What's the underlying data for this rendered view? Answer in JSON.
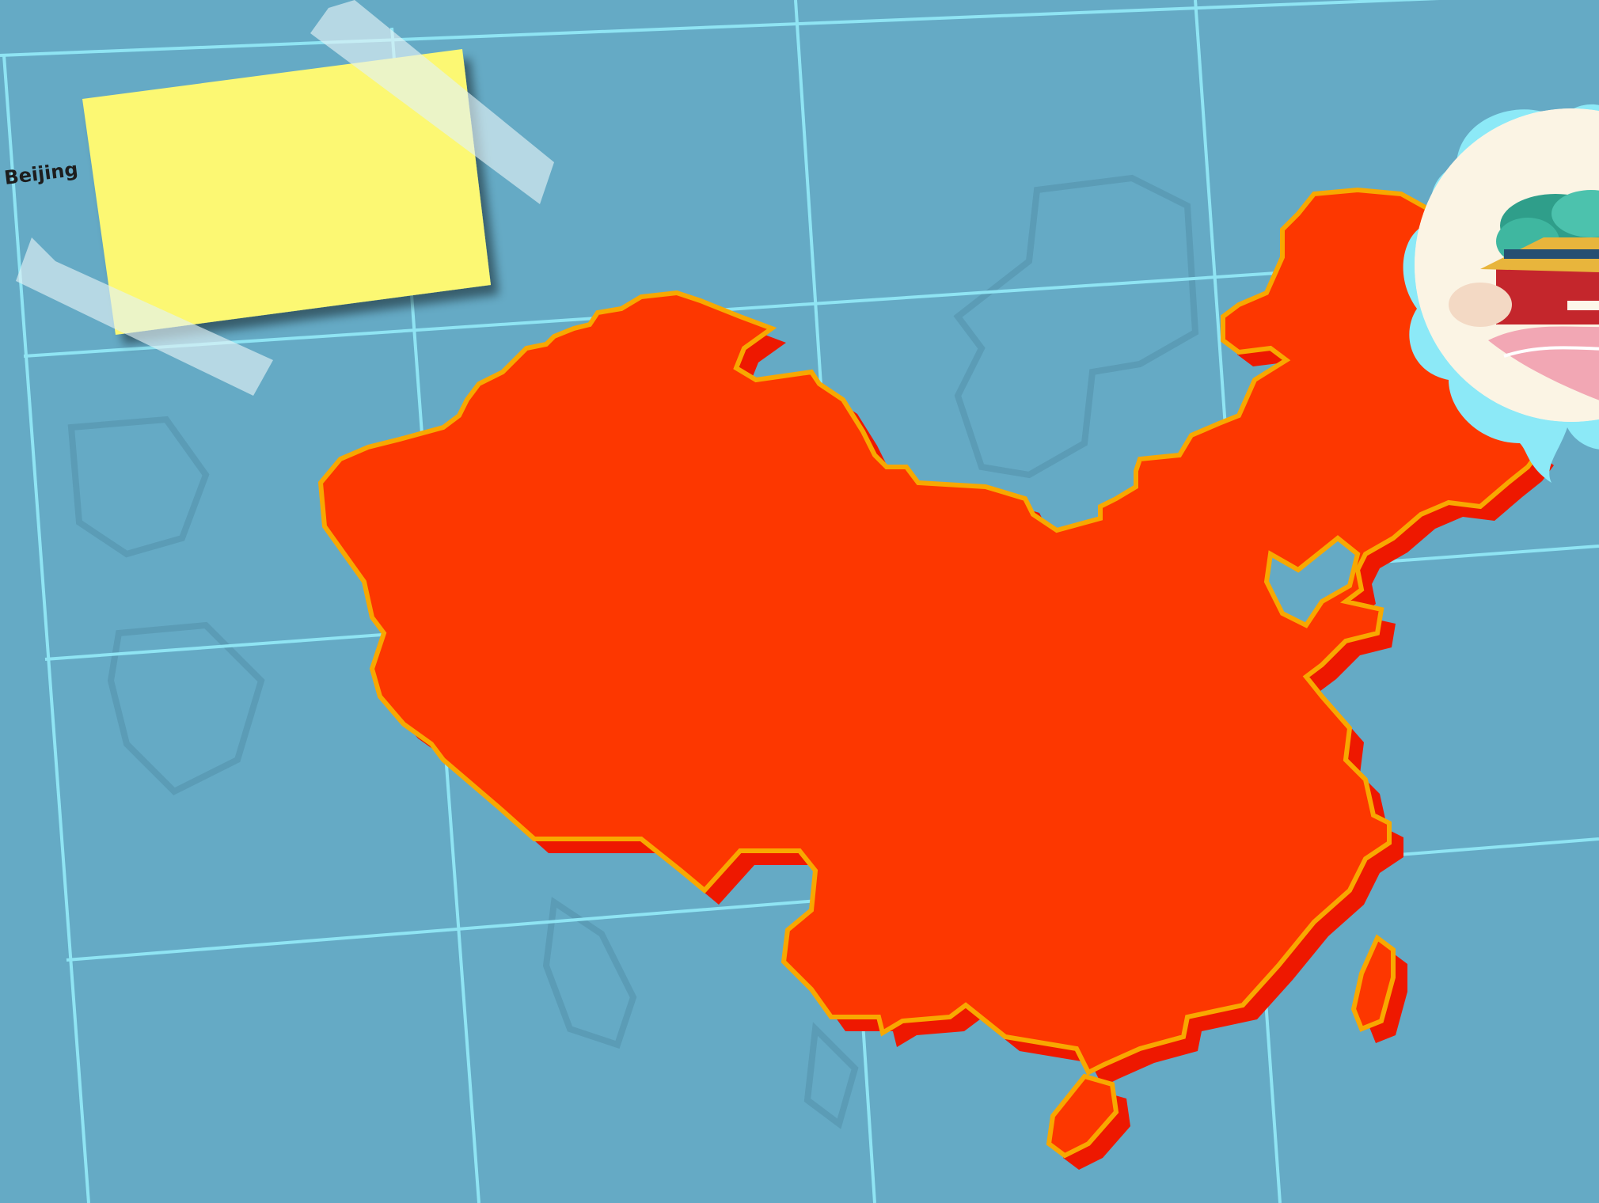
{
  "map": {
    "city_label": "Beijing",
    "colors": {
      "ocean": "#65aac5",
      "grid_line": "#8fe4f3",
      "country_fill": "#fd3700",
      "country_shadow": "#ee1800",
      "country_outline": "#f8a800",
      "sticky_note": "#fcf873",
      "tape": "#d6ecf2",
      "cloud_bubble": "#8ce9f7"
    },
    "icons": {
      "sticky_note": "sticky-note-icon",
      "landmark": "forbidden-city-icon"
    }
  }
}
